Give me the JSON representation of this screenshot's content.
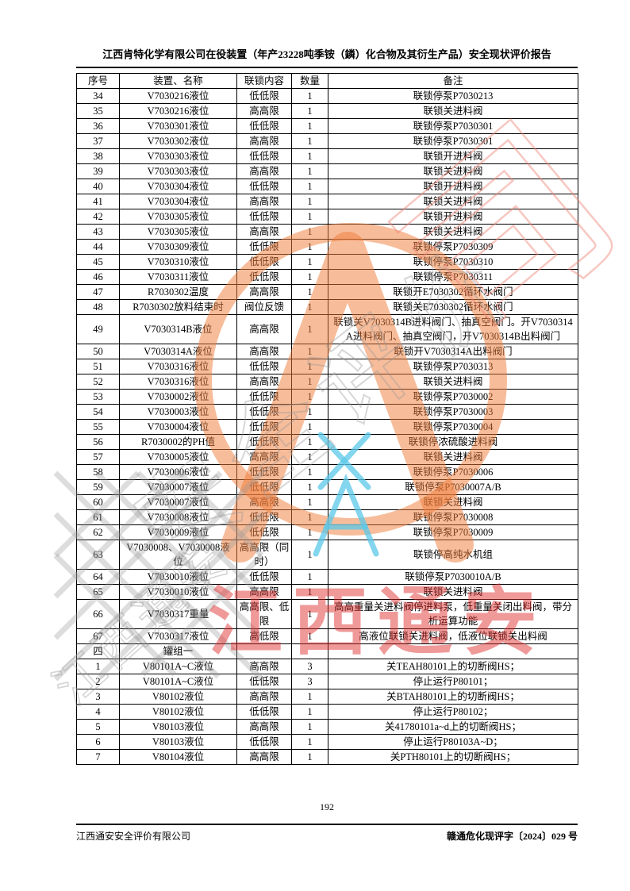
{
  "page": {
    "header_title": "江西肯特化学有限公司在役装置（年产23228吨季铵（鏻）化合物及其衍生产品）安全现状评价报告",
    "page_number": "192",
    "footer_left": "江西通安安全评价有限公司",
    "footer_right": "赣通危化现评字〔2024〕029 号"
  },
  "table": {
    "columns": [
      "序号",
      "装置、名称",
      "联锁内容",
      "数量",
      "备注"
    ],
    "rows": [
      {
        "no": "34",
        "name": "V7030216液位",
        "interlock": "低低限",
        "qty": "1",
        "remark": "联锁停泵P7030213"
      },
      {
        "no": "35",
        "name": "V7030216液位",
        "interlock": "高高限",
        "qty": "1",
        "remark": "联锁关进料阀"
      },
      {
        "no": "36",
        "name": "V7030301液位",
        "interlock": "低低限",
        "qty": "1",
        "remark": "联锁停泵P7030301"
      },
      {
        "no": "37",
        "name": "V7030302液位",
        "interlock": "高高限",
        "qty": "1",
        "remark": "联锁停泵P7030301"
      },
      {
        "no": "38",
        "name": "V7030303液位",
        "interlock": "低低限",
        "qty": "1",
        "remark": "联锁开进料阀"
      },
      {
        "no": "39",
        "name": "V7030303液位",
        "interlock": "高高限",
        "qty": "1",
        "remark": "联锁关进料阀"
      },
      {
        "no": "40",
        "name": "V7030304液位",
        "interlock": "低低限",
        "qty": "1",
        "remark": "联锁开进料阀"
      },
      {
        "no": "41",
        "name": "V7030304液位",
        "interlock": "高高限",
        "qty": "1",
        "remark": "联锁关进料阀"
      },
      {
        "no": "42",
        "name": "V7030305液位",
        "interlock": "低低限",
        "qty": "1",
        "remark": "联锁开进料阀"
      },
      {
        "no": "43",
        "name": "V7030305液位",
        "interlock": "高高限",
        "qty": "1",
        "remark": "联锁关进料阀"
      },
      {
        "no": "44",
        "name": "V7030309液位",
        "interlock": "低低限",
        "qty": "1",
        "remark": "联锁停泵P7030309"
      },
      {
        "no": "45",
        "name": "V7030310液位",
        "interlock": "低低限",
        "qty": "1",
        "remark": "联锁停泵P7030310"
      },
      {
        "no": "46",
        "name": "V7030311液位",
        "interlock": "低低限",
        "qty": "1",
        "remark": "联锁停泵P7030311"
      },
      {
        "no": "47",
        "name": "R7030302温度",
        "interlock": "高高限",
        "qty": "1",
        "remark": "联锁开E7030302循环水阀门"
      },
      {
        "no": "48",
        "name": "R7030302放料结束时",
        "interlock": "阀位反馈",
        "qty": "1",
        "remark": "联锁关E7030302循环水阀门"
      },
      {
        "no": "49",
        "name": "V7030314B液位",
        "interlock": "高高限",
        "qty": "1",
        "remark": "联锁关V7030314B进料阀门、抽真空阀门。开V7030314A进料阀门、抽真空阀门，开V7030314B出料阀门"
      },
      {
        "no": "50",
        "name": "V7030314A液位",
        "interlock": "高高限",
        "qty": "1",
        "remark": "联锁开V7030314A出料阀门"
      },
      {
        "no": "51",
        "name": "V7030316液位",
        "interlock": "低低限",
        "qty": "1",
        "remark": "联锁停泵P7030313"
      },
      {
        "no": "52",
        "name": "V7030316液位",
        "interlock": "高高限",
        "qty": "1",
        "remark": "联锁关进料阀"
      },
      {
        "no": "53",
        "name": "V7030002液位",
        "interlock": "低低限",
        "qty": "1",
        "remark": "联锁停泵P7030002"
      },
      {
        "no": "54",
        "name": "V7030003液位",
        "interlock": "低低限",
        "qty": "1",
        "remark": "联锁停泵P7030003"
      },
      {
        "no": "55",
        "name": "V7030004液位",
        "interlock": "低低限",
        "qty": "1",
        "remark": "联锁停泵P7030004"
      },
      {
        "no": "56",
        "name": "R7030002的PH值",
        "interlock": "低低限",
        "qty": "1",
        "remark": "联锁停浓硫酸进料阀"
      },
      {
        "no": "57",
        "name": "V7030005液位",
        "interlock": "高高限",
        "qty": "1",
        "remark": "联锁关进料阀"
      },
      {
        "no": "58",
        "name": "V7030006液位",
        "interlock": "低低限",
        "qty": "1",
        "remark": "联锁停泵P7030006"
      },
      {
        "no": "59",
        "name": "V7030007液位",
        "interlock": "低低限",
        "qty": "1",
        "remark": "联锁停泵P7030007A/B"
      },
      {
        "no": "60",
        "name": "V7030007液位",
        "interlock": "高高限",
        "qty": "1",
        "remark": "联锁关进料阀"
      },
      {
        "no": "61",
        "name": "V7030008液位",
        "interlock": "低低限",
        "qty": "1",
        "remark": "联锁停泵P7030008"
      },
      {
        "no": "62",
        "name": "V7030009液位",
        "interlock": "低低限",
        "qty": "1",
        "remark": "联锁停泵P7030009"
      },
      {
        "no": "63",
        "name": "V7030008、V7030008液位",
        "interlock": "高高限（同时）",
        "qty": "1",
        "remark": "联锁停高纯水机组"
      },
      {
        "no": "64",
        "name": "V7030010液位",
        "interlock": "低低限",
        "qty": "1",
        "remark": "联锁停泵P7030010A/B"
      },
      {
        "no": "65",
        "name": "V7030010液位",
        "interlock": "高高限",
        "qty": "1",
        "remark": "联锁关进料阀"
      },
      {
        "no": "66",
        "name": "V7030317重量",
        "interlock": "高高限、低限",
        "qty": "1",
        "remark": "高高重量关进料阀停进料泵，低重量关闭出料阀，带分析运算功能"
      },
      {
        "no": "67",
        "name": "V7030317液位",
        "interlock": "高低限",
        "qty": "1",
        "remark": "高液位联锁关进料阀，低液位联锁关出料阀"
      },
      {
        "no": "四",
        "name": "罐组一",
        "interlock": "",
        "qty": "",
        "remark": ""
      },
      {
        "no": "1",
        "name": "V80101A~C液位",
        "interlock": "高高限",
        "qty": "3",
        "remark": "关TEAH80101上的切断阀HS；"
      },
      {
        "no": "2",
        "name": "V80101A~C液位",
        "interlock": "低低限",
        "qty": "3",
        "remark": "停止运行P80101；"
      },
      {
        "no": "3",
        "name": "V80102液位",
        "interlock": "高高限",
        "qty": "1",
        "remark": "关BTAH80101上的切断阀HS；"
      },
      {
        "no": "4",
        "name": "V80102液位",
        "interlock": "低低限",
        "qty": "1",
        "remark": "停止运行P80102；"
      },
      {
        "no": "5",
        "name": "V80103液位",
        "interlock": "高高限",
        "qty": "1",
        "remark": "关41780101a~d上的切断阀HS；"
      },
      {
        "no": "6",
        "name": "V80103液位",
        "interlock": "低低限",
        "qty": "1",
        "remark": "停止运行P80103A~D；"
      },
      {
        "no": "7",
        "name": "V80104液位",
        "interlock": "高高限",
        "qty": "1",
        "remark": "关PTH80101上的切断阀HS；"
      }
    ]
  },
  "watermark": {
    "red_text": "江西通安",
    "diagonal_outline_text": "安全评价",
    "corner_outline_char": "司",
    "small_gray_text": "江西通安",
    "colors": {
      "orange": "#F07B3C",
      "red": "#DD2A2A",
      "blue": "#5BC8E8",
      "gray": "#969696",
      "pink": "#EE8276"
    }
  }
}
